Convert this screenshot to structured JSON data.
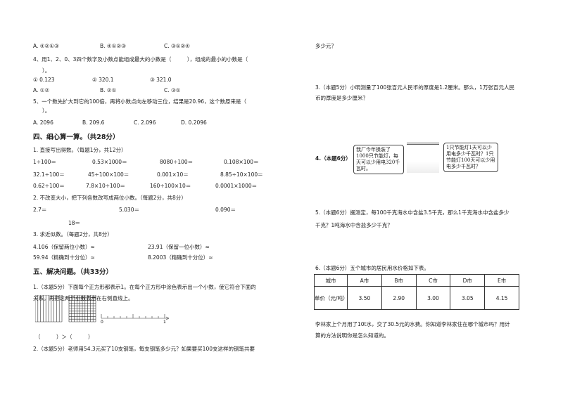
{
  "left": {
    "q3_options": [
      "A. ④②①③",
      "B. ④①②③",
      "C. ③①②④"
    ],
    "q4_text": "4、用1、2、0、3四个数字及小数点能组成最大的小数是（　　　），组成的最小的小数是（",
    "q4_cont": "）。",
    "q4_items": [
      "① 0.123",
      "② 320.1",
      "③ 321.0"
    ],
    "q4_options": [
      "A. ①②",
      "B. ②①",
      "C. ③①"
    ],
    "q5_text": "5、一个数先扩大到它的100倍，再将小数点向左移动三位，结果是20.96，这个数原来是（",
    "q5_cont": "）。",
    "q5_options": [
      "A. 2096",
      "B. 209.6",
      "C. 2.096",
      "D. 0.2096"
    ],
    "sec4_title": "四、细心算一算。（共28分）",
    "s4_q1": "1. 直接写出得数。（每题1分，共12分）",
    "s4_q1_rows": [
      [
        "1÷100＝",
        "0.53×1000＝",
        "8080÷100＝",
        "0.108×100＝"
      ],
      [
        "32.1÷100＝",
        "45÷100×100＝",
        "0.001×10＝",
        "8.85÷10×100＝"
      ],
      [
        "0.62÷100＝",
        "7.8×10÷100＝",
        "160÷100×10＝",
        "0.0001×1000＝"
      ]
    ],
    "s4_q2": "2. 不改变大小，把下列各数改写成两位小数。（每题2分，共8分）",
    "s4_q2_items": [
      "2.7＝",
      "5.030＝",
      "0.090＝",
      "18＝"
    ],
    "s4_q3": "3. 求近似数。（每题2分，共8分）",
    "s4_q3_items": [
      "4.106（保留两位小数）≈",
      "23.91（保留一位小数）≈",
      "59.94（精确到十分位）≈",
      "8.2003（精确到十分位）≈"
    ],
    "sec5_title": "五、解决问题。（共33分）",
    "s5_q1_a": "1.（本题5分）下面每个正方形都表示1。在每个正方形中涂色表示出一个小数，使它符合下面的",
    "s5_q1_b": "关系。再把这两个小数表示在右侧直线上。",
    "numline_labels": [
      "0",
      "1"
    ],
    "compare": "（　　　）＞（　　　）",
    "s5_q2": "2.（本题5分）老师用54.3元买了10支钢笔，每支钢笔多少元？如果要买100支这样的钢笔共要"
  },
  "right": {
    "q2_cont": "多少元？",
    "q3_a": "3.（本题5分）小明测量了100张百元人民币的厚度是1.2厘米。那么，1万张百元人民",
    "q3_b": "币的厚度是多少厘米？",
    "q4_label": "4.（本题6分）",
    "bubble1": "我厂今年换装了1000只节能灯，每天可以少用电320千瓦时。",
    "bubble2": "1只节能灯1天可以少用电多少千瓦时？1只节能灯100天可以少用电多少千瓦时？",
    "q5_a": "5.（本题6分）据测定，每100千克海水中含盐3.5千克，那么1千克海水中含盐多少",
    "q5_b": "千克？1吨海水中含盐多少千克？",
    "q6": "6.（本题6分）五个城市的居民用水价格如下表。",
    "table": {
      "header": [
        "城市",
        "A市",
        "B市",
        "C市",
        "D市",
        "E市"
      ],
      "row_label": "单价（元/吨）",
      "values": [
        "3.50",
        "2.90",
        "3.00",
        "3.05",
        "4.15"
      ]
    },
    "q6_a": "李林家上个月用了10t水，交了30.5元的水费。你知道李林家住在哪个城市吗？用计",
    "q6_b": "算的方法说明你是怎么知道的。"
  }
}
